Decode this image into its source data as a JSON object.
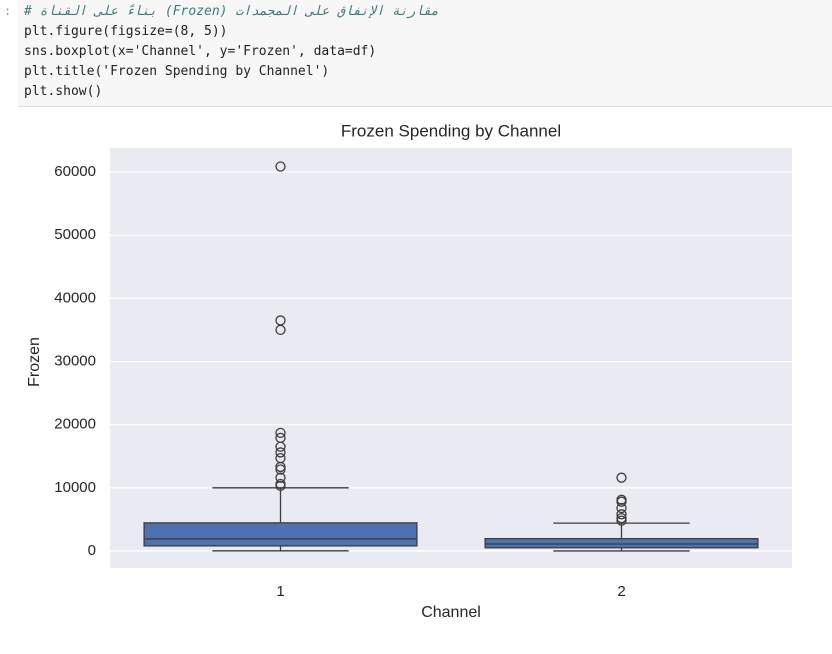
{
  "code": {
    "prompt": ":",
    "lines": [
      "# بناءً على القناة (Frozen) مقارنة الإنفاق على المجمدات",
      "plt.figure(figsize=(8, 5))",
      "sns.boxplot(x='Channel', y='Frozen', data=df)",
      "plt.title('Frozen Spending by Channel')",
      "plt.show()"
    ]
  },
  "chart_data": {
    "type": "box",
    "title": "Frozen Spending by Channel",
    "x_label": "Channel",
    "y_label": "Frozen",
    "categories": [
      "1",
      "2"
    ],
    "color": "#4c72b0",
    "boxes": [
      {
        "whislo": 25,
        "q1": 800,
        "median": 1900,
        "q3": 4450,
        "whishi": 10000,
        "fliers": [
          60870,
          36500,
          35000,
          18700,
          17900,
          16500,
          15600,
          14700,
          13300,
          12900,
          11600,
          10600,
          10300
        ]
      },
      {
        "whislo": 0,
        "q1": 500,
        "median": 1100,
        "q3": 1950,
        "whishi": 4400,
        "fliers": [
          11600,
          8100,
          7800,
          6800,
          5800,
          5200,
          4800
        ]
      }
    ],
    "ylim": [
      -2700,
      63800
    ],
    "yticks": [
      0,
      10000,
      20000,
      30000,
      40000,
      50000,
      60000
    ],
    "grid": true
  }
}
